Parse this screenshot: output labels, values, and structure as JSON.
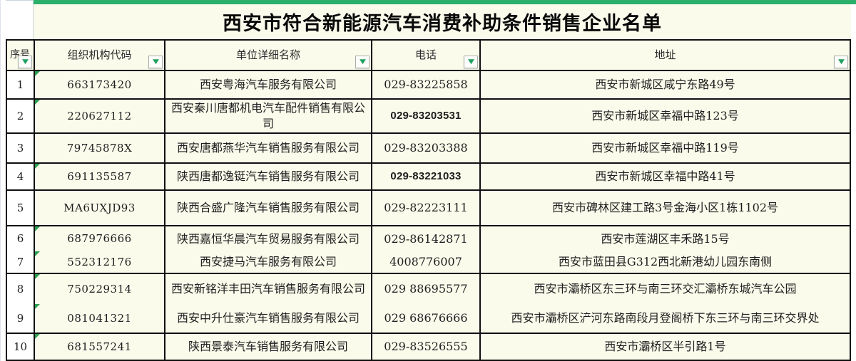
{
  "title": "西安市符合新能源汽车消费补助条件销售企业名单",
  "columns": {
    "seq": "序号",
    "code": "组织机构代码",
    "name": "单位详细名称",
    "phone": "电话",
    "address": "地址"
  },
  "rows": [
    {
      "seq": "1",
      "code": "663173420",
      "name": "西安粤海汽车服务有限公司",
      "phone": "029-83225858",
      "address": "西安市新城区咸宁东路49号"
    },
    {
      "seq": "2",
      "code": "220627112",
      "name": "西安秦川唐都机电汽车配件销售有限公司",
      "phone": "029-83203531",
      "address": "西安市新城区幸福中路123号"
    },
    {
      "seq": "3",
      "code": "79745878X",
      "name": "西安唐都燕华汽车销售服务有限公司",
      "phone": "029-83203388",
      "address": "西安市新城区幸福中路119号"
    },
    {
      "seq": "4",
      "code": "691135587",
      "name": "陕西唐都逸铤汽车销售服务有限公司",
      "phone": "029-83221033",
      "address": "西安市新城区幸福中路41号"
    },
    {
      "seq": "5",
      "code": "MA6UXJD93",
      "name": "陕西合盛广隆汽车销售服务有限公司",
      "phone": "029-82223111",
      "address": "西安市碑林区建工路3号金海小区1栋1102号"
    },
    {
      "seq": "6",
      "code": "687976666",
      "name": "陕西嘉恒华晨汽车贸易服务有限公司",
      "phone": "029-86142871",
      "address": "西安市莲湖区丰禾路15号"
    },
    {
      "seq": "7",
      "code": "552312176",
      "name": "西安捷马汽车服务有限公司",
      "phone": "4008776007",
      "address": "西安市蓝田县G312西北新港幼儿园东南侧"
    },
    {
      "seq": "8",
      "code": "750229314",
      "name": "西安新铭洋丰田汽车销售服务有限公司",
      "phone": "029 88695577",
      "address": "西安市灞桥区东三环与南三环交汇灞桥东城汽车公园"
    },
    {
      "seq": "9",
      "code": "081041321",
      "name": "西安中升仕豪汽车销售服务有限公司",
      "phone": "029 68676666",
      "address": "西安市灞桥区浐河东路南段月登阁桥下东三环与南三环交界处"
    },
    {
      "seq": "10",
      "code": "681557241",
      "name": "陕西景泰汽车销售服务有限公司",
      "phone": "029-83526555",
      "address": "西安市灞桥区半引路1号"
    }
  ],
  "icons": {
    "filter_dropdown": "▼"
  },
  "colors": {
    "accent_green_bar": "#2ab06b",
    "cell_background": "#fbfbec",
    "dropdown_arrow_green": "#1fa05e",
    "error_marker_green": "#2e9e4f",
    "border_black": "#101010"
  }
}
